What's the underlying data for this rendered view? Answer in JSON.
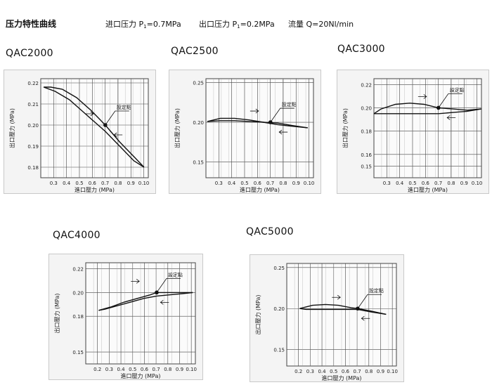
{
  "header": {
    "title": "压力特性曲线",
    "inlet_label": "进口压力 P",
    "inlet_sub": "1",
    "inlet_value": "=0.7MPa",
    "outlet_label": "出口压力 P",
    "outlet_sub": "1",
    "outlet_value": "=0.2MPa",
    "flow": "流量 Q=20Nl/min"
  },
  "colors": {
    "panel_bg": "#f4f4f4",
    "grid": "#444444",
    "curve": "#111111"
  },
  "chart_data": [
    {
      "model": "QAC2000",
      "type": "line",
      "xlabel": "進口壓力 (MPa)",
      "ylabel": "出口壓力 (MPa)",
      "xticks": [
        "0.3",
        "0.4",
        "0.5",
        "0.6",
        "0.7",
        "0.8",
        "0.9",
        "0.10"
      ],
      "yticks": [
        "0.22",
        "0.21",
        "0.20",
        "0.19",
        "0.18"
      ],
      "xlim": [
        0.25,
        1.0
      ],
      "ylim": [
        0.175,
        0.222
      ],
      "set_point_label": "設定點",
      "set_point": [
        0.7,
        0.2
      ],
      "series": [
        {
          "x": [
            0.27,
            0.35,
            0.45,
            0.55,
            0.65,
            0.7,
            0.8,
            0.9,
            0.97
          ],
          "y": [
            0.218,
            0.216,
            0.212,
            0.206,
            0.2,
            0.197,
            0.19,
            0.183,
            0.18
          ]
        },
        {
          "x": [
            0.97,
            0.9,
            0.8,
            0.7,
            0.6,
            0.5,
            0.4,
            0.32,
            0.27
          ],
          "y": [
            0.18,
            0.185,
            0.192,
            0.2,
            0.207,
            0.213,
            0.217,
            0.218,
            0.218
          ]
        }
      ]
    },
    {
      "model": "QAC2500",
      "type": "line",
      "xlabel": "進口壓力 (MPa)",
      "ylabel": "出口壓力 (MPa)",
      "xticks": [
        "0.3",
        "0.4",
        "0.5",
        "0.6",
        "0.7",
        "0.8",
        "0.9",
        "0.10"
      ],
      "yticks": [
        "0.25",
        "0.20",
        "0.15"
      ],
      "xlim": [
        0.25,
        1.0
      ],
      "ylim": [
        0.13,
        0.255
      ],
      "set_point_label": "設定點",
      "set_point": [
        0.7,
        0.2
      ],
      "series": [
        {
          "x": [
            0.26,
            0.35,
            0.45,
            0.55,
            0.65,
            0.75,
            0.85,
            0.96
          ],
          "y": [
            0.201,
            0.205,
            0.205,
            0.203,
            0.2,
            0.197,
            0.195,
            0.193
          ]
        },
        {
          "x": [
            0.96,
            0.85,
            0.75,
            0.65,
            0.55,
            0.45,
            0.35,
            0.26
          ],
          "y": [
            0.193,
            0.196,
            0.199,
            0.2,
            0.201,
            0.202,
            0.202,
            0.201
          ]
        }
      ]
    },
    {
      "model": "QAC3000",
      "type": "line",
      "xlabel": "進口壓力 (MPa)",
      "ylabel": "出口壓力 (MPa)",
      "xticks": [
        "0.3",
        "0.4",
        "0.5",
        "0.6",
        "0.7",
        "0.8",
        "0.9",
        "0.10"
      ],
      "yticks": [
        "0.22",
        "0.20",
        "0.18",
        "0.16",
        "0.15"
      ],
      "xlim": [
        0.25,
        1.0
      ],
      "ylim": [
        0.14,
        0.225
      ],
      "set_point_label": "設定點",
      "set_point": [
        0.7,
        0.2
      ],
      "series": [
        {
          "x": [
            0.25,
            0.3,
            0.4,
            0.5,
            0.6,
            0.7,
            0.8,
            0.9,
            1.0
          ],
          "y": [
            0.195,
            0.199,
            0.203,
            0.204,
            0.203,
            0.2,
            0.199,
            0.198,
            0.199
          ]
        },
        {
          "x": [
            1.0,
            0.9,
            0.8,
            0.7,
            0.6,
            0.5,
            0.4,
            0.3,
            0.25
          ],
          "y": [
            0.199,
            0.197,
            0.196,
            0.195,
            0.195,
            0.195,
            0.195,
            0.195,
            0.195
          ]
        }
      ]
    },
    {
      "model": "QAC4000",
      "type": "line",
      "xlabel": "進口壓力 (MPa)",
      "ylabel": "出口壓力 (MPa)",
      "xticks": [
        "0.2",
        "0.3",
        "0.4",
        "0.5",
        "0.6",
        "0.7",
        "0.8",
        "0.9",
        "0.10"
      ],
      "yticks": [
        "0.22",
        "0.20",
        "0.18",
        "0.15"
      ],
      "xlim": [
        0.15,
        1.0
      ],
      "ylim": [
        0.14,
        0.225
      ],
      "set_point_label": "設定點",
      "set_point": [
        0.7,
        0.2
      ],
      "series": [
        {
          "x": [
            0.25,
            0.35,
            0.45,
            0.55,
            0.65,
            0.7,
            0.8,
            0.9,
            0.98
          ],
          "y": [
            0.185,
            0.188,
            0.192,
            0.195,
            0.198,
            0.2,
            0.2,
            0.2,
            0.2
          ]
        },
        {
          "x": [
            0.98,
            0.9,
            0.8,
            0.7,
            0.6,
            0.5,
            0.4,
            0.3,
            0.25
          ],
          "y": [
            0.2,
            0.199,
            0.198,
            0.197,
            0.195,
            0.192,
            0.189,
            0.186,
            0.185
          ]
        }
      ]
    },
    {
      "model": "QAC5000",
      "type": "line",
      "xlabel": "進口壓力 (MPa)",
      "ylabel": "出口壓力 (MPa)",
      "xticks": [
        "0.2",
        "0.3",
        "0.4",
        "0.5",
        "0.6",
        "0.7",
        "0.8",
        "0.9",
        "0.10"
      ],
      "yticks": [
        "0.25",
        "0.20",
        "0.15"
      ],
      "xlim": [
        0.15,
        1.0
      ],
      "ylim": [
        0.13,
        0.255
      ],
      "set_point_label": "設定點",
      "set_point": [
        0.7,
        0.2
      ],
      "series": [
        {
          "x": [
            0.25,
            0.35,
            0.45,
            0.55,
            0.65,
            0.7,
            0.8,
            0.92
          ],
          "y": [
            0.2,
            0.204,
            0.205,
            0.204,
            0.201,
            0.2,
            0.197,
            0.193
          ]
        },
        {
          "x": [
            0.92,
            0.8,
            0.7,
            0.6,
            0.5,
            0.4,
            0.3,
            0.25
          ],
          "y": [
            0.193,
            0.196,
            0.199,
            0.199,
            0.199,
            0.199,
            0.199,
            0.2
          ]
        }
      ]
    }
  ]
}
